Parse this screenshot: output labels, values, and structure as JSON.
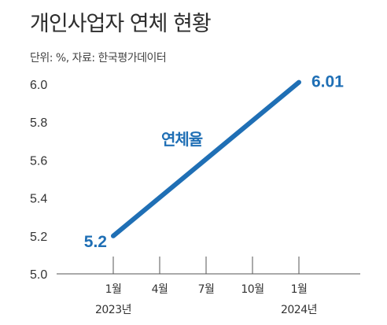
{
  "title": "개인사업자 연체 현황",
  "subtitle": "단위: %, 자료: 한국평가데이터",
  "colors": {
    "line": "#1f6fb5",
    "text": "#333333",
    "axis": "#555555"
  },
  "chart_data": {
    "type": "line",
    "title": "개인사업자 연체 현황",
    "subtitle": "단위: %, 자료: 한국평가데이터",
    "ylim": [
      5.0,
      6.0
    ],
    "yticks": [
      "5.0",
      "5.2",
      "5.4",
      "5.6",
      "5.8",
      "6.0"
    ],
    "x_tick_labels": [
      {
        "label": "1월",
        "sublabel": "2023년"
      },
      {
        "label": "4월",
        "sublabel": ""
      },
      {
        "label": "7월",
        "sublabel": ""
      },
      {
        "label": "10월",
        "sublabel": ""
      },
      {
        "label": "1월",
        "sublabel": "2024년"
      }
    ],
    "grid": false,
    "series": [
      {
        "name": "연체율",
        "points": [
          {
            "x": "2023년 1월",
            "y": 5.2,
            "label": "5.2"
          },
          {
            "x": "2024년 1월",
            "y": 6.01,
            "label": "6.01"
          }
        ]
      }
    ]
  }
}
